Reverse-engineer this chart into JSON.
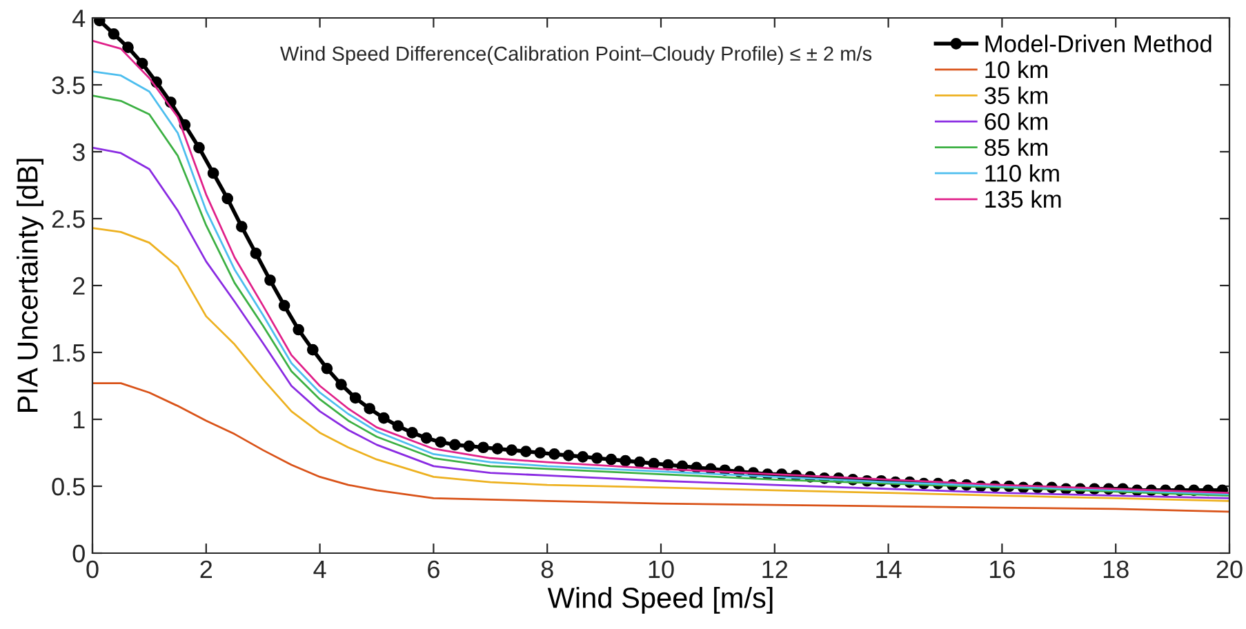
{
  "chart_data": {
    "type": "line",
    "xlabel": "Wind Speed [m/s]",
    "ylabel": "PIA Uncertainty [dB]",
    "annotations": [
      "Wind Speed Difference(Calibration Point–Cloudy Profile) ≤ ± 2 m/s"
    ],
    "xlim": [
      0,
      20
    ],
    "xticks": [
      0,
      2,
      4,
      6,
      8,
      10,
      12,
      14,
      16,
      18,
      20
    ],
    "ylim": [
      0,
      4
    ],
    "yticks": [
      0,
      0.5,
      1,
      1.5,
      2,
      2.5,
      3,
      3.5,
      4
    ],
    "grid": false,
    "legend": "top right",
    "line_style": "solid",
    "series": [
      {
        "name": "Model-Driven Method",
        "color": "#000000",
        "marker": "circle",
        "x": [
          0.125,
          0.375,
          0.625,
          0.875,
          1.125,
          1.375,
          1.625,
          1.875,
          2.125,
          2.375,
          2.625,
          2.875,
          3.125,
          3.375,
          3.625,
          3.875,
          4.125,
          4.375,
          4.625,
          4.875,
          5.125,
          5.375,
          5.625,
          5.875,
          6.125,
          6.375,
          6.625,
          6.875,
          7.125,
          7.375,
          7.625,
          7.875,
          8.125,
          8.375,
          8.625,
          8.875,
          9.125,
          9.375,
          9.625,
          9.875,
          10.125,
          10.375,
          10.625,
          10.875,
          11.125,
          11.375,
          11.625,
          11.875,
          12.125,
          12.375,
          12.625,
          12.875,
          13.125,
          13.375,
          13.625,
          13.875,
          14.125,
          14.375,
          14.625,
          14.875,
          15.125,
          15.375,
          15.625,
          15.875,
          16.125,
          16.375,
          16.625,
          16.875,
          17.125,
          17.375,
          17.625,
          17.875,
          18.125,
          18.375,
          18.625,
          18.875,
          19.125,
          19.375,
          19.625,
          19.875
        ],
        "values": [
          3.98,
          3.88,
          3.78,
          3.66,
          3.52,
          3.37,
          3.2,
          3.03,
          2.84,
          2.65,
          2.44,
          2.24,
          2.04,
          1.85,
          1.67,
          1.52,
          1.38,
          1.26,
          1.16,
          1.08,
          1.01,
          0.95,
          0.9,
          0.86,
          0.83,
          0.81,
          0.8,
          0.79,
          0.78,
          0.77,
          0.76,
          0.75,
          0.74,
          0.73,
          0.72,
          0.71,
          0.7,
          0.69,
          0.68,
          0.67,
          0.66,
          0.65,
          0.64,
          0.63,
          0.62,
          0.61,
          0.6,
          0.59,
          0.59,
          0.58,
          0.57,
          0.56,
          0.56,
          0.55,
          0.54,
          0.54,
          0.53,
          0.53,
          0.52,
          0.52,
          0.51,
          0.51,
          0.5,
          0.5,
          0.5,
          0.49,
          0.49,
          0.49,
          0.48,
          0.48,
          0.48,
          0.48,
          0.48,
          0.47,
          0.47,
          0.47,
          0.47,
          0.47,
          0.47,
          0.47
        ]
      },
      {
        "name": "10 km",
        "color": "#d95319",
        "x": [
          0,
          0.5,
          1,
          1.5,
          2,
          2.5,
          3,
          3.5,
          4,
          4.5,
          5,
          6,
          7,
          8,
          10,
          12,
          14,
          16,
          18,
          20
        ],
        "values": [
          1.27,
          1.27,
          1.2,
          1.1,
          0.99,
          0.89,
          0.77,
          0.66,
          0.57,
          0.51,
          0.47,
          0.41,
          0.4,
          0.39,
          0.37,
          0.36,
          0.35,
          0.34,
          0.33,
          0.31
        ]
      },
      {
        "name": "35 km",
        "color": "#edb120",
        "x": [
          0,
          0.5,
          1,
          1.5,
          2,
          2.5,
          3,
          3.5,
          4,
          4.5,
          5,
          6,
          7,
          8,
          10,
          12,
          14,
          16,
          18,
          20
        ],
        "values": [
          2.43,
          2.4,
          2.32,
          2.14,
          1.77,
          1.56,
          1.3,
          1.06,
          0.9,
          0.79,
          0.7,
          0.57,
          0.53,
          0.51,
          0.49,
          0.47,
          0.45,
          0.43,
          0.41,
          0.39
        ]
      },
      {
        "name": "60 km",
        "color": "#8a2be2",
        "x": [
          0,
          0.5,
          1,
          1.5,
          2,
          2.5,
          3,
          3.5,
          4,
          4.5,
          5,
          6,
          7,
          8,
          10,
          12,
          14,
          16,
          18,
          20
        ],
        "values": [
          3.03,
          2.99,
          2.87,
          2.56,
          2.18,
          1.88,
          1.57,
          1.25,
          1.06,
          0.92,
          0.81,
          0.65,
          0.6,
          0.58,
          0.54,
          0.51,
          0.48,
          0.45,
          0.43,
          0.41
        ]
      },
      {
        "name": "85 km",
        "color": "#3cb043",
        "x": [
          0,
          0.5,
          1,
          1.5,
          2,
          2.5,
          3,
          3.5,
          4,
          4.5,
          5,
          6,
          7,
          8,
          10,
          12,
          14,
          16,
          18,
          20
        ],
        "values": [
          3.42,
          3.38,
          3.28,
          2.97,
          2.45,
          2.02,
          1.7,
          1.36,
          1.15,
          0.99,
          0.87,
          0.71,
          0.65,
          0.63,
          0.59,
          0.55,
          0.52,
          0.49,
          0.46,
          0.43
        ]
      },
      {
        "name": "110 km",
        "color": "#4dbeee",
        "x": [
          0,
          0.5,
          1,
          1.5,
          2,
          2.5,
          3,
          3.5,
          4,
          4.5,
          5,
          6,
          7,
          8,
          10,
          12,
          14,
          16,
          18,
          20
        ],
        "values": [
          3.6,
          3.57,
          3.45,
          3.14,
          2.56,
          2.12,
          1.78,
          1.42,
          1.2,
          1.04,
          0.91,
          0.74,
          0.68,
          0.65,
          0.61,
          0.57,
          0.53,
          0.5,
          0.47,
          0.44
        ]
      },
      {
        "name": "135 km",
        "color": "#e0218a",
        "x": [
          0,
          0.5,
          1,
          1.5,
          2,
          2.5,
          3,
          3.5,
          4,
          4.5,
          5,
          6,
          7,
          8,
          10,
          12,
          14,
          16,
          18,
          20
        ],
        "values": [
          3.83,
          3.77,
          3.55,
          3.26,
          2.68,
          2.21,
          1.85,
          1.48,
          1.25,
          1.08,
          0.94,
          0.78,
          0.71,
          0.68,
          0.63,
          0.59,
          0.55,
          0.51,
          0.48,
          0.45
        ]
      }
    ]
  }
}
